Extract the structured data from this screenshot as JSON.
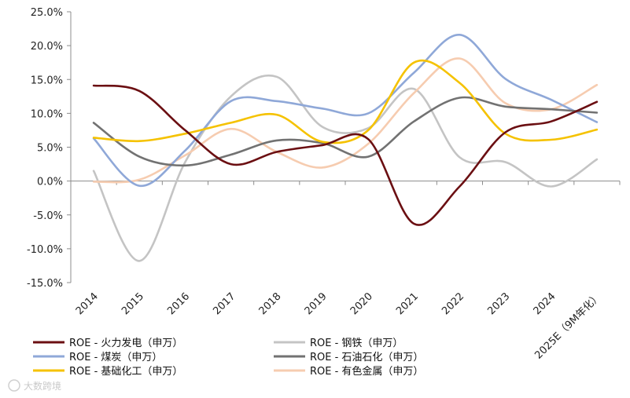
{
  "chart_data": {
    "type": "line",
    "title": "",
    "xlabel": "",
    "ylabel": "",
    "categories": [
      "2014",
      "2015",
      "2016",
      "2017",
      "2018",
      "2019",
      "2020",
      "2021",
      "2022",
      "2023",
      "2024",
      "2025E（9M年化）"
    ],
    "y_tick_labels": [
      "25.0%",
      "20.0%",
      "15.0%",
      "10.0%",
      "5.0%",
      "0.0%",
      "-5.0%",
      "-10.0%",
      "-15.0%"
    ],
    "ylim": [
      -15,
      25
    ],
    "grid": false,
    "legend_position": "bottom",
    "series": [
      {
        "name": "ROE - 火力发电（申万）",
        "color": "#6b0f12",
        "values": [
          14.1,
          13.3,
          7.5,
          2.5,
          4.3,
          5.3,
          6.2,
          -6.3,
          -0.8,
          7.2,
          8.8,
          11.7
        ]
      },
      {
        "name": "ROE - 钢铁（申万）",
        "color": "#c4c4c4",
        "values": [
          1.5,
          -11.8,
          2.8,
          12.5,
          15.4,
          8.0,
          7.8,
          13.6,
          3.5,
          2.8,
          -0.8,
          3.2
        ]
      },
      {
        "name": "ROE - 煤炭（申万）",
        "color": "#8fa8d8",
        "values": [
          6.3,
          -0.7,
          4.5,
          11.8,
          11.8,
          10.7,
          10.0,
          16.0,
          21.6,
          15.1,
          12.0,
          8.7
        ]
      },
      {
        "name": "ROE - 石油石化（申万）",
        "color": "#727272",
        "values": [
          8.6,
          3.6,
          2.3,
          3.9,
          6.0,
          5.6,
          3.6,
          8.8,
          12.3,
          11.0,
          10.6,
          10.1
        ]
      },
      {
        "name": "ROE - 基础化工（申万）",
        "color": "#f5c200",
        "values": [
          6.4,
          5.9,
          7.0,
          8.6,
          9.8,
          5.8,
          7.5,
          17.5,
          14.5,
          7.0,
          6.1,
          7.6
        ]
      },
      {
        "name": "ROE - 有色金属（申万）",
        "color": "#f6ccb0",
        "values": [
          -0.1,
          0.2,
          3.8,
          7.7,
          4.3,
          2.0,
          5.5,
          13.0,
          18.1,
          11.5,
          10.6,
          14.2
        ]
      }
    ]
  },
  "watermark": "大数跨境"
}
